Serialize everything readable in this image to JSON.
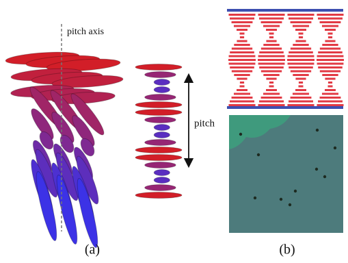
{
  "panel_a": {
    "axis_label": "pitch axis",
    "pitch_label": "pitch",
    "caption": "(a)"
  },
  "panel_b": {
    "caption": "(b)"
  }
}
